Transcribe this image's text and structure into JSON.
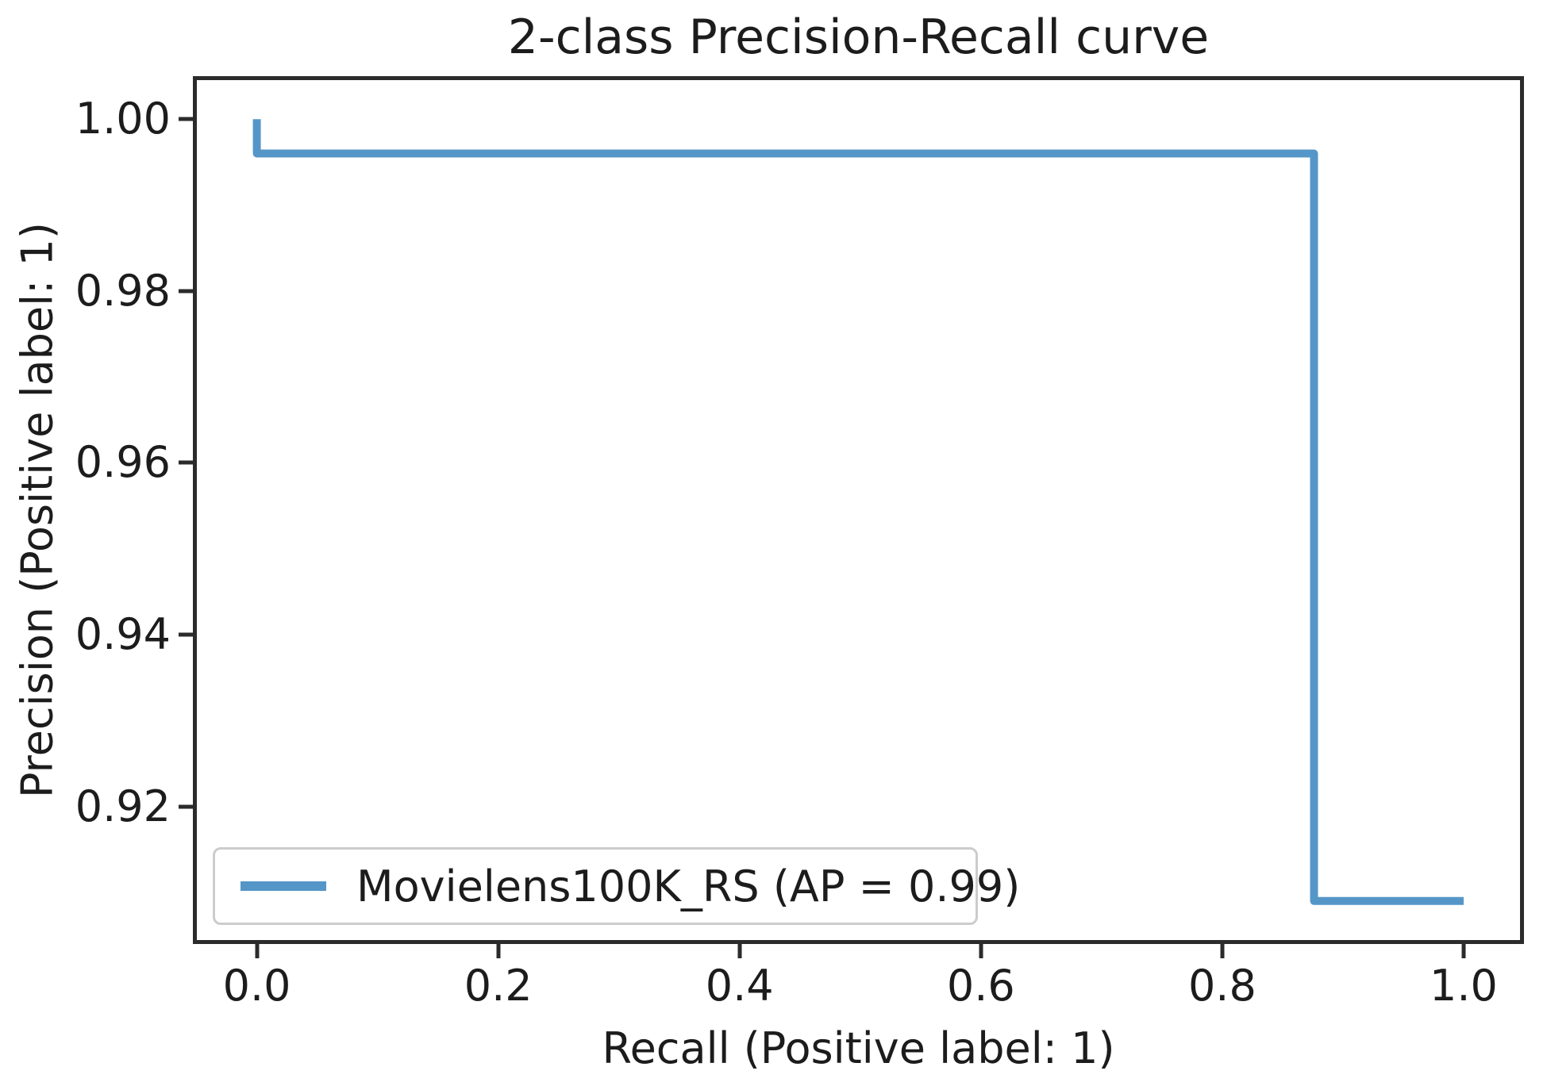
{
  "chart_data": {
    "type": "line",
    "title": "2-class Precision-Recall curve",
    "xlabel": "Recall (Positive label: 1)",
    "ylabel": "Precision (Positive label: 1)",
    "xlim": [
      -0.053,
      1.05
    ],
    "ylim": [
      0.904,
      1.005
    ],
    "grid": false,
    "xticks": {
      "values": [
        0.0,
        0.2,
        0.4,
        0.6,
        0.8,
        1.0
      ],
      "labels": [
        "0.0",
        "0.2",
        "0.4",
        "0.6",
        "0.8",
        "1.0"
      ]
    },
    "yticks": {
      "values": [
        1.0,
        0.98,
        0.96,
        0.94,
        0.92
      ],
      "labels": [
        "1.00",
        "0.98",
        "0.96",
        "0.94",
        "0.92"
      ]
    },
    "legend": {
      "position": "lower left",
      "entries": [
        {
          "label": "Movielens100K_RS (AP = 0.99)",
          "color": "#5596c8"
        }
      ]
    },
    "series": [
      {
        "name": "Movielens100K_RS",
        "ap": 0.99,
        "color": "#5596c8",
        "line_width": 10,
        "step": true,
        "points": [
          [
            0.0,
            1.0
          ],
          [
            0.0,
            0.996
          ],
          [
            0.876,
            0.996
          ],
          [
            0.876,
            0.909
          ],
          [
            1.0,
            0.909
          ]
        ]
      }
    ]
  },
  "colors": {
    "background": "#ffffff",
    "text": "#1c1c1c",
    "spine": "#2b2b2b",
    "legend_border": "#cccccc"
  }
}
